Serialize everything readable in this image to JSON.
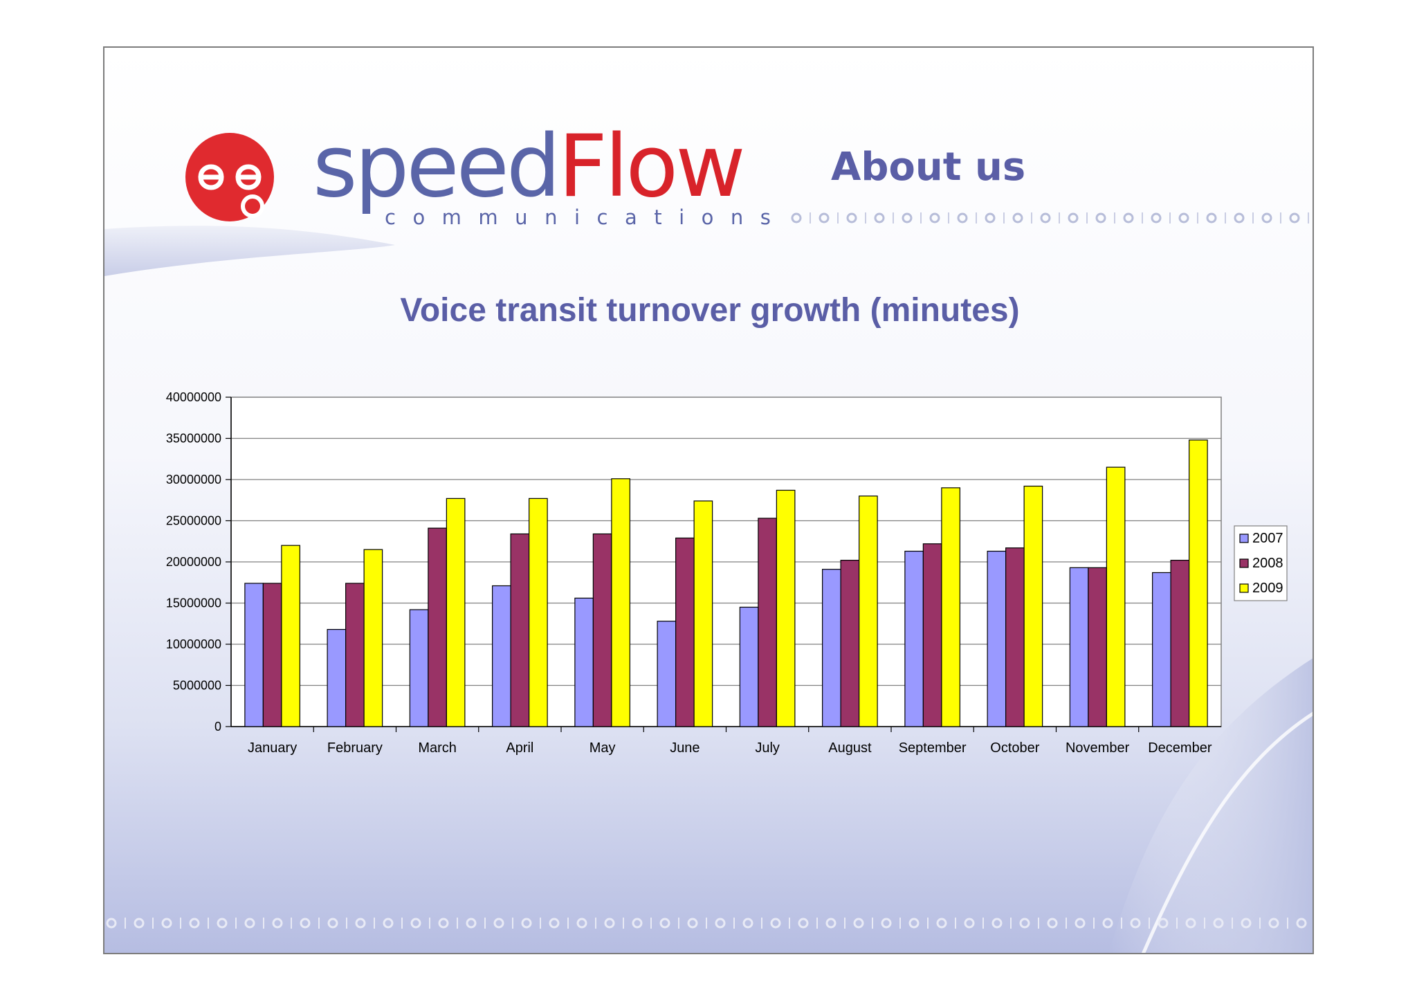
{
  "slide": {
    "heading": "About us"
  },
  "logo": {
    "name_part1": "speed",
    "name_part2": "Flow",
    "tagline": "communications"
  },
  "colors": {
    "heading": "#5a5ea6",
    "logo_blue": "#5a65a8",
    "logo_red": "#d8232a",
    "series_2007": "#9999ff",
    "series_2008": "#993366",
    "series_2009": "#ffff00"
  },
  "chart_data": {
    "type": "bar",
    "title": "Voice transit turnover growth (minutes)",
    "xlabel": "",
    "ylabel": "",
    "categories": [
      "January",
      "February",
      "March",
      "April",
      "May",
      "June",
      "July",
      "August",
      "September",
      "October",
      "November",
      "December"
    ],
    "series": [
      {
        "name": "2007",
        "color": "#9999ff",
        "values": [
          17400000,
          11800000,
          14200000,
          17100000,
          15600000,
          12800000,
          14500000,
          19100000,
          21300000,
          21300000,
          19300000,
          18700000
        ]
      },
      {
        "name": "2008",
        "color": "#993366",
        "values": [
          17400000,
          17400000,
          24100000,
          23400000,
          23400000,
          22900000,
          25300000,
          20200000,
          22200000,
          21700000,
          19300000,
          20200000
        ]
      },
      {
        "name": "2009",
        "color": "#ffff00",
        "values": [
          22000000,
          21500000,
          27700000,
          27700000,
          30100000,
          27400000,
          28700000,
          28000000,
          29000000,
          29200000,
          31500000,
          34800000
        ]
      }
    ],
    "ylim": [
      0,
      40000000
    ],
    "yticks": [
      "0",
      "5000000",
      "10000000",
      "15000000",
      "20000000",
      "25000000",
      "30000000",
      "35000000",
      "40000000"
    ],
    "grid": true,
    "legend": "right"
  }
}
